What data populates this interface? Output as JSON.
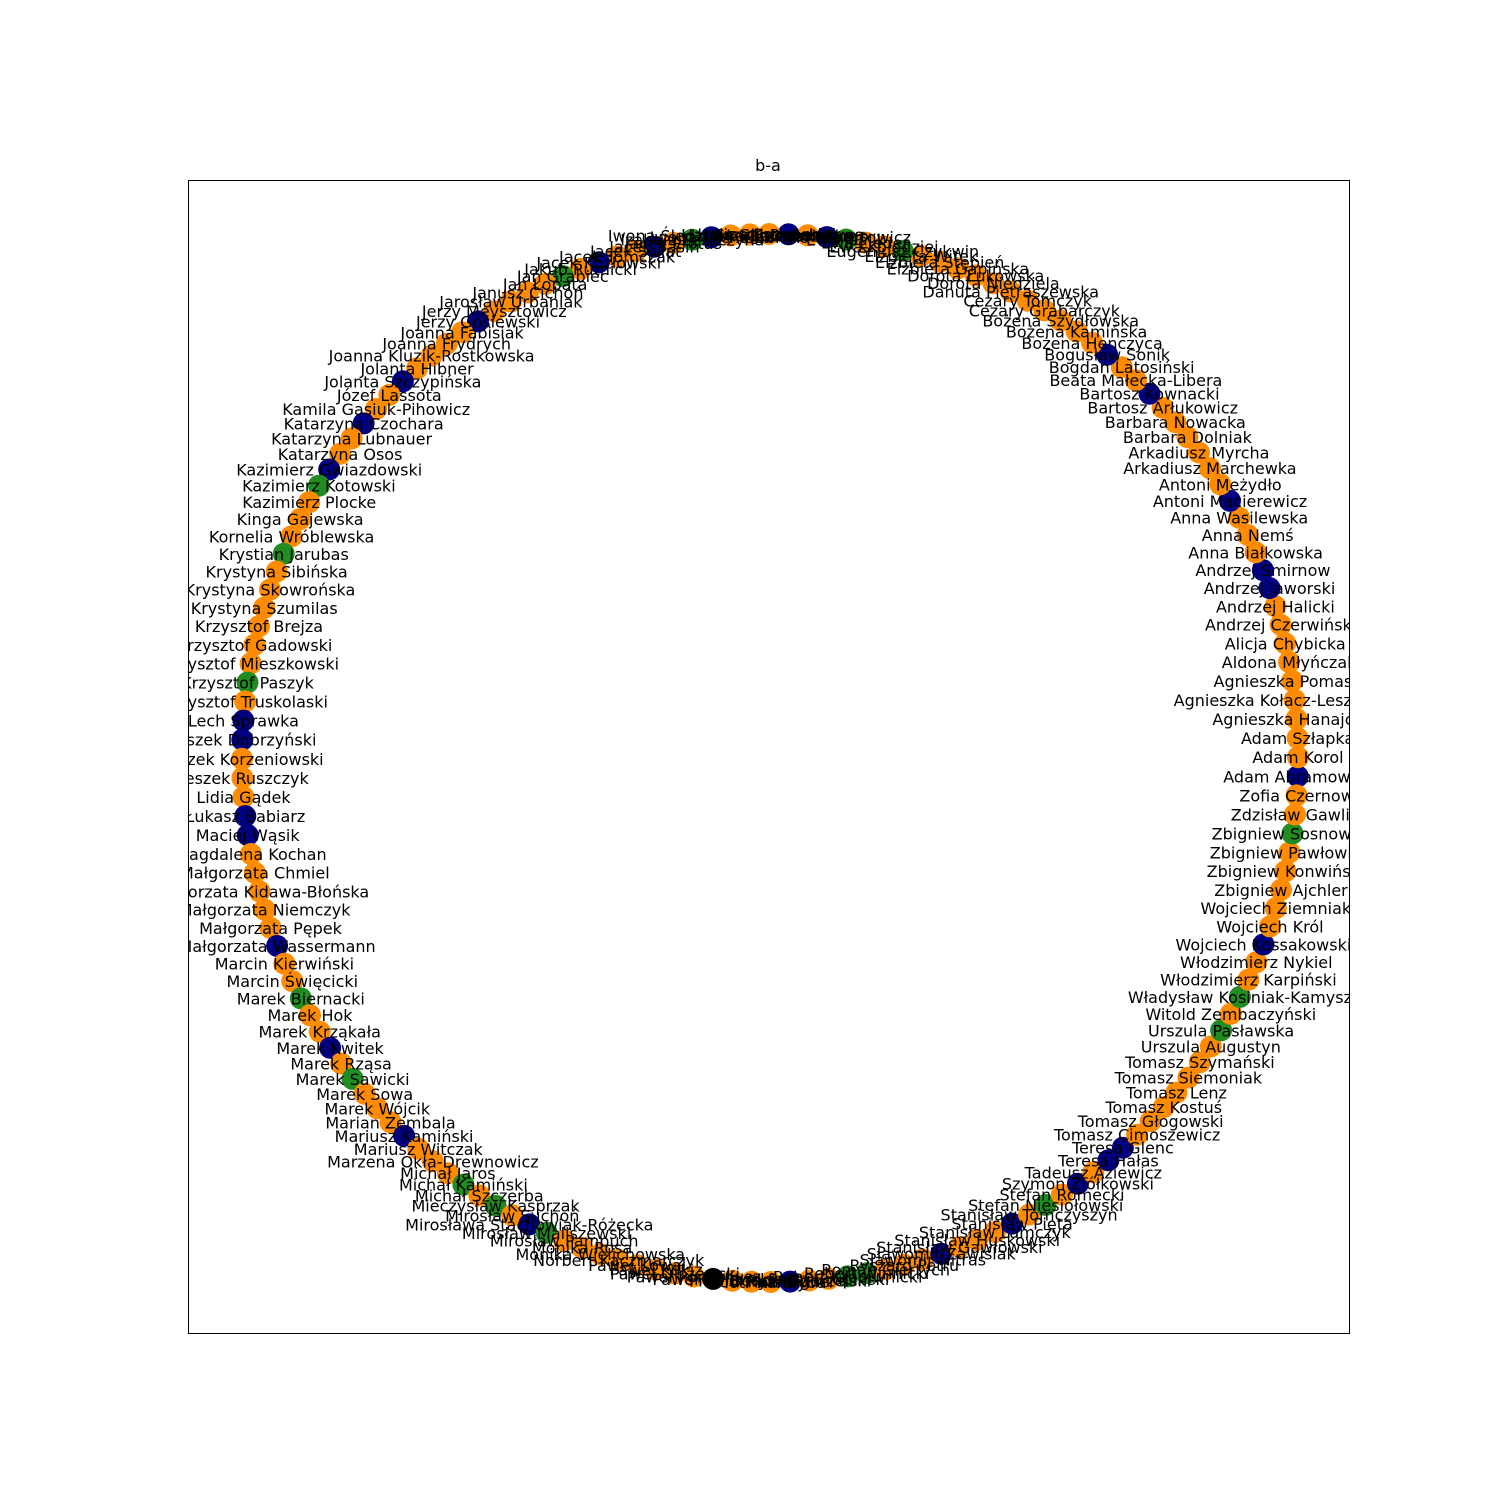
{
  "figure": {
    "title": "b-a"
  },
  "legend": {
    "node_colors": {
      "orange": "#ff8c00",
      "navy": "#000080",
      "green": "#228b22",
      "black": "#000000"
    }
  },
  "chart_data": {
    "type": "network",
    "layout": "circular",
    "title": "b-a",
    "nodes": [
      {
        "label": "Adam Abramowicz",
        "color": "navy"
      },
      {
        "label": "Adam Korol",
        "color": "orange"
      },
      {
        "label": "Adam Szłapka",
        "color": "orange"
      },
      {
        "label": "Agnieszka Hanajczyk",
        "color": "orange"
      },
      {
        "label": "Agnieszka Kołacz-Leszczyńska",
        "color": "orange"
      },
      {
        "label": "Agnieszka Pomaska",
        "color": "orange"
      },
      {
        "label": "Aldona Młyńczak",
        "color": "orange"
      },
      {
        "label": "Alicja Chybicka",
        "color": "orange"
      },
      {
        "label": "Andrzej Czerwiński",
        "color": "orange"
      },
      {
        "label": "Andrzej Halicki",
        "color": "orange"
      },
      {
        "label": "Andrzej Jaworski",
        "color": "navy"
      },
      {
        "label": "Andrzej Smirnow",
        "color": "navy"
      },
      {
        "label": "Anna Białkowska",
        "color": "orange"
      },
      {
        "label": "Anna Nemś",
        "color": "orange"
      },
      {
        "label": "Anna Wasilewska",
        "color": "orange"
      },
      {
        "label": "Antoni Macierewicz",
        "color": "navy"
      },
      {
        "label": "Antoni Meżydło",
        "color": "orange"
      },
      {
        "label": "Arkadiusz Marchewka",
        "color": "orange"
      },
      {
        "label": "Arkadiusz Myrcha",
        "color": "orange"
      },
      {
        "label": "Barbara Dolniak",
        "color": "orange"
      },
      {
        "label": "Barbara Nowacka",
        "color": "orange"
      },
      {
        "label": "Bartosz Arłukowicz",
        "color": "orange"
      },
      {
        "label": "Bartosz Kownacki",
        "color": "navy"
      },
      {
        "label": "Beata Małecka-Libera",
        "color": "orange"
      },
      {
        "label": "Bogdan Latosiński",
        "color": "orange"
      },
      {
        "label": "Bogusław Sonik",
        "color": "navy"
      },
      {
        "label": "Bożena Henczyca",
        "color": "orange"
      },
      {
        "label": "Bożena Kamińska",
        "color": "orange"
      },
      {
        "label": "Bożena Szydłowska",
        "color": "orange"
      },
      {
        "label": "Cezary Grabarczyk",
        "color": "orange"
      },
      {
        "label": "Cezary Tomczyk",
        "color": "orange"
      },
      {
        "label": "Danuta Pietraszewska",
        "color": "orange"
      },
      {
        "label": "Dorota Niedziela",
        "color": "orange"
      },
      {
        "label": "Dorota Łukowska",
        "color": "orange"
      },
      {
        "label": "Elżbieta Gapińska",
        "color": "orange"
      },
      {
        "label": "Elżbieta Stępień",
        "color": "orange"
      },
      {
        "label": "Elżbieta Witek",
        "color": "orange"
      },
      {
        "label": "Eugeniusz Czykwin",
        "color": "green"
      },
      {
        "label": "Ewa Kołodziej",
        "color": "orange"
      },
      {
        "label": "Ewa Lieder",
        "color": "orange"
      },
      {
        "label": "Ewa Malik",
        "color": "green"
      },
      {
        "label": "Gabriela Lenartowicz",
        "color": "navy"
      },
      {
        "label": "Grzegorz Furgo",
        "color": "orange"
      },
      {
        "label": "Grzegorz Schetyna",
        "color": "navy"
      },
      {
        "label": "Halina Rozpondek",
        "color": "orange"
      },
      {
        "label": "Hanna Gill-Piątek",
        "color": "orange"
      },
      {
        "label": "Iwona Śledzińska-Katarasińska",
        "color": "orange"
      },
      {
        "label": "Iwona Michałek",
        "color": "navy"
      },
      {
        "label": "Izabela Leszczyna",
        "color": "green"
      },
      {
        "label": "Jacek Protas",
        "color": "orange"
      },
      {
        "label": "Jacek Sasin",
        "color": "navy"
      },
      {
        "label": "Jacek Świat",
        "color": "orange"
      },
      {
        "label": "Jacek Tomczak",
        "color": "orange"
      },
      {
        "label": "Jacek Kozłowski",
        "color": "navy"
      },
      {
        "label": "Jakub Rutnicki",
        "color": "orange"
      },
      {
        "label": "Jan Grabiec",
        "color": "green"
      },
      {
        "label": "Jan Łopata",
        "color": "orange"
      },
      {
        "label": "Janusz Cichoń",
        "color": "orange"
      },
      {
        "label": "Jarosław Urbaniak",
        "color": "orange"
      },
      {
        "label": "Jerzy Meysztowicz",
        "color": "orange"
      },
      {
        "label": "Jerzy Gosiewski",
        "color": "navy"
      },
      {
        "label": "Joanna Fabisiak",
        "color": "orange"
      },
      {
        "label": "Joanna Frydrych",
        "color": "orange"
      },
      {
        "label": "Joanna Kluzik-Rostkowska",
        "color": "orange"
      },
      {
        "label": "Jolanta Hibner",
        "color": "orange"
      },
      {
        "label": "Jolanta Szczypińska",
        "color": "navy"
      },
      {
        "label": "Józef Lassota",
        "color": "orange"
      },
      {
        "label": "Kamila Gasiuk-Pihowicz",
        "color": "orange"
      },
      {
        "label": "Katarzyna Czochara",
        "color": "navy"
      },
      {
        "label": "Katarzyna Lubnauer",
        "color": "orange"
      },
      {
        "label": "Katarzyna Osos",
        "color": "orange"
      },
      {
        "label": "Kazimierz Gwiazdowski",
        "color": "navy"
      },
      {
        "label": "Kazimierz Kotowski",
        "color": "green"
      },
      {
        "label": "Kazimierz Plocke",
        "color": "orange"
      },
      {
        "label": "Kinga Gajewska",
        "color": "orange"
      },
      {
        "label": "Kornelia Wróblewska",
        "color": "orange"
      },
      {
        "label": "Krystian Jarubas",
        "color": "green"
      },
      {
        "label": "Krystyna Sibińska",
        "color": "orange"
      },
      {
        "label": "Krystyna Skowrońska",
        "color": "orange"
      },
      {
        "label": "Krystyna Szumilas",
        "color": "orange"
      },
      {
        "label": "Krzysztof Brejza",
        "color": "orange"
      },
      {
        "label": "Krzysztof Gadowski",
        "color": "orange"
      },
      {
        "label": "Krzysztof Mieszkowski",
        "color": "orange"
      },
      {
        "label": "Krzysztof Paszyk",
        "color": "green"
      },
      {
        "label": "Krzysztof Truskolaski",
        "color": "orange"
      },
      {
        "label": "Lech Sprawka",
        "color": "navy"
      },
      {
        "label": "Leszek Dobrzyński",
        "color": "navy"
      },
      {
        "label": "Leszek Korzeniowski",
        "color": "orange"
      },
      {
        "label": "Leszek Ruszczyk",
        "color": "orange"
      },
      {
        "label": "Lidia Gądek",
        "color": "orange"
      },
      {
        "label": "Łukasz Babiarz",
        "color": "navy"
      },
      {
        "label": "Maciej Wąsik",
        "color": "navy"
      },
      {
        "label": "Magdalena Kochan",
        "color": "orange"
      },
      {
        "label": "Małgorzata Chmiel",
        "color": "orange"
      },
      {
        "label": "Małgorzata Kidawa-Błońska",
        "color": "orange"
      },
      {
        "label": "Małgorzata Niemczyk",
        "color": "orange"
      },
      {
        "label": "Małgorzata Pępek",
        "color": "orange"
      },
      {
        "label": "Małgorzata Wassermann",
        "color": "navy"
      },
      {
        "label": "Marcin Kierwiński",
        "color": "orange"
      },
      {
        "label": "Marcin Święcicki",
        "color": "orange"
      },
      {
        "label": "Marek Biernacki",
        "color": "green"
      },
      {
        "label": "Marek Hok",
        "color": "orange"
      },
      {
        "label": "Marek Krząkała",
        "color": "orange"
      },
      {
        "label": "Marek Kwitek",
        "color": "navy"
      },
      {
        "label": "Marek Rząsa",
        "color": "orange"
      },
      {
        "label": "Marek Sawicki",
        "color": "green"
      },
      {
        "label": "Marek Sowa",
        "color": "orange"
      },
      {
        "label": "Marek Wójcik",
        "color": "orange"
      },
      {
        "label": "Marian Zembala",
        "color": "orange"
      },
      {
        "label": "Mariusz Kamiński",
        "color": "navy"
      },
      {
        "label": "Mariusz Witczak",
        "color": "orange"
      },
      {
        "label": "Marzena Okła-Drewnowicz",
        "color": "orange"
      },
      {
        "label": "Michał Jaros",
        "color": "orange"
      },
      {
        "label": "Michał Kamiński",
        "color": "green"
      },
      {
        "label": "Michał Szczerba",
        "color": "orange"
      },
      {
        "label": "Mieczysław Kasprzak",
        "color": "green"
      },
      {
        "label": "Mirosław Suchoń",
        "color": "orange"
      },
      {
        "label": "Mirosława Stachowiak-Różecka",
        "color": "navy"
      },
      {
        "label": "Mirosław Maliszewski",
        "color": "green"
      },
      {
        "label": "Mirosław Pampuch",
        "color": "orange"
      },
      {
        "label": "Monika Rosa",
        "color": "orange"
      },
      {
        "label": "Monika Wielichowska",
        "color": "orange"
      },
      {
        "label": "Norbert Kaczmarczyk",
        "color": "orange"
      },
      {
        "label": "Paweł Kowal",
        "color": "orange"
      },
      {
        "label": "Paweł Kukiz",
        "color": "orange"
      },
      {
        "label": "Paweł Olszewski",
        "color": "orange"
      },
      {
        "label": "Paweł Poncyljusz",
        "color": "orange"
      },
      {
        "label": "Paweł Zalewski",
        "color": "black"
      },
      {
        "label": "Piotr Borys",
        "color": "orange"
      },
      {
        "label": "Piotr Kaleta",
        "color": "orange"
      },
      {
        "label": "Piotr Kandyba",
        "color": "orange"
      },
      {
        "label": "Piotr Müller",
        "color": "navy"
      },
      {
        "label": "Piotr Zgorzelski",
        "color": "orange"
      },
      {
        "label": "Rafał Grupiński",
        "color": "orange"
      },
      {
        "label": "Robert Kropiwnicki",
        "color": "green"
      },
      {
        "label": "Robert Winnicki",
        "color": "green"
      },
      {
        "label": "Roman Giertych",
        "color": "orange"
      },
      {
        "label": "Ryszard Petru",
        "color": "orange"
      },
      {
        "label": "Sławomir Nitras",
        "color": "orange"
      },
      {
        "label": "Sławomir Zawiślak",
        "color": "navy"
      },
      {
        "label": "Stanisław Gawłowski",
        "color": "orange"
      },
      {
        "label": "Stanisław Huskowski",
        "color": "orange"
      },
      {
        "label": "Stanisław Lamczyk",
        "color": "orange"
      },
      {
        "label": "Stanisław Pięta",
        "color": "navy"
      },
      {
        "label": "Stanisław Tomczyszyn",
        "color": "orange"
      },
      {
        "label": "Stefan Niesiołowski",
        "color": "green"
      },
      {
        "label": "Stefan Romecki",
        "color": "orange"
      },
      {
        "label": "Szymon Ziółkowski",
        "color": "navy"
      },
      {
        "label": "Tadeusz Aziewicz",
        "color": "orange"
      },
      {
        "label": "Teresa Hałas",
        "color": "navy"
      },
      {
        "label": "Teresa Glenc",
        "color": "navy"
      },
      {
        "label": "Tomasz Cimoszewicz",
        "color": "orange"
      },
      {
        "label": "Tomasz Głogowski",
        "color": "orange"
      },
      {
        "label": "Tomasz Kostuś",
        "color": "orange"
      },
      {
        "label": "Tomasz Lenz",
        "color": "orange"
      },
      {
        "label": "Tomasz Siemoniak",
        "color": "orange"
      },
      {
        "label": "Tomasz Szymański",
        "color": "orange"
      },
      {
        "label": "Urszula Augustyn",
        "color": "orange"
      },
      {
        "label": "Urszula Pasławska",
        "color": "green"
      },
      {
        "label": "Witold Zembaczyński",
        "color": "orange"
      },
      {
        "label": "Władysław Kosiniak-Kamysz",
        "color": "green"
      },
      {
        "label": "Włodzimierz Karpiński",
        "color": "orange"
      },
      {
        "label": "Włodzimierz Nykiel",
        "color": "orange"
      },
      {
        "label": "Wojciech Kossakowski",
        "color": "navy"
      },
      {
        "label": "Wojciech Król",
        "color": "orange"
      },
      {
        "label": "Wojciech Ziemniak",
        "color": "orange"
      },
      {
        "label": "Zbigniew Ajchler",
        "color": "orange"
      },
      {
        "label": "Zbigniew Konwiński",
        "color": "orange"
      },
      {
        "label": "Zbigniew Pawłowicz",
        "color": "orange"
      },
      {
        "label": "Zbigniew Sosnowski",
        "color": "green"
      },
      {
        "label": "Zdzisław Gawlik",
        "color": "orange"
      },
      {
        "label": "Zofia Czernow",
        "color": "orange"
      }
    ]
  }
}
